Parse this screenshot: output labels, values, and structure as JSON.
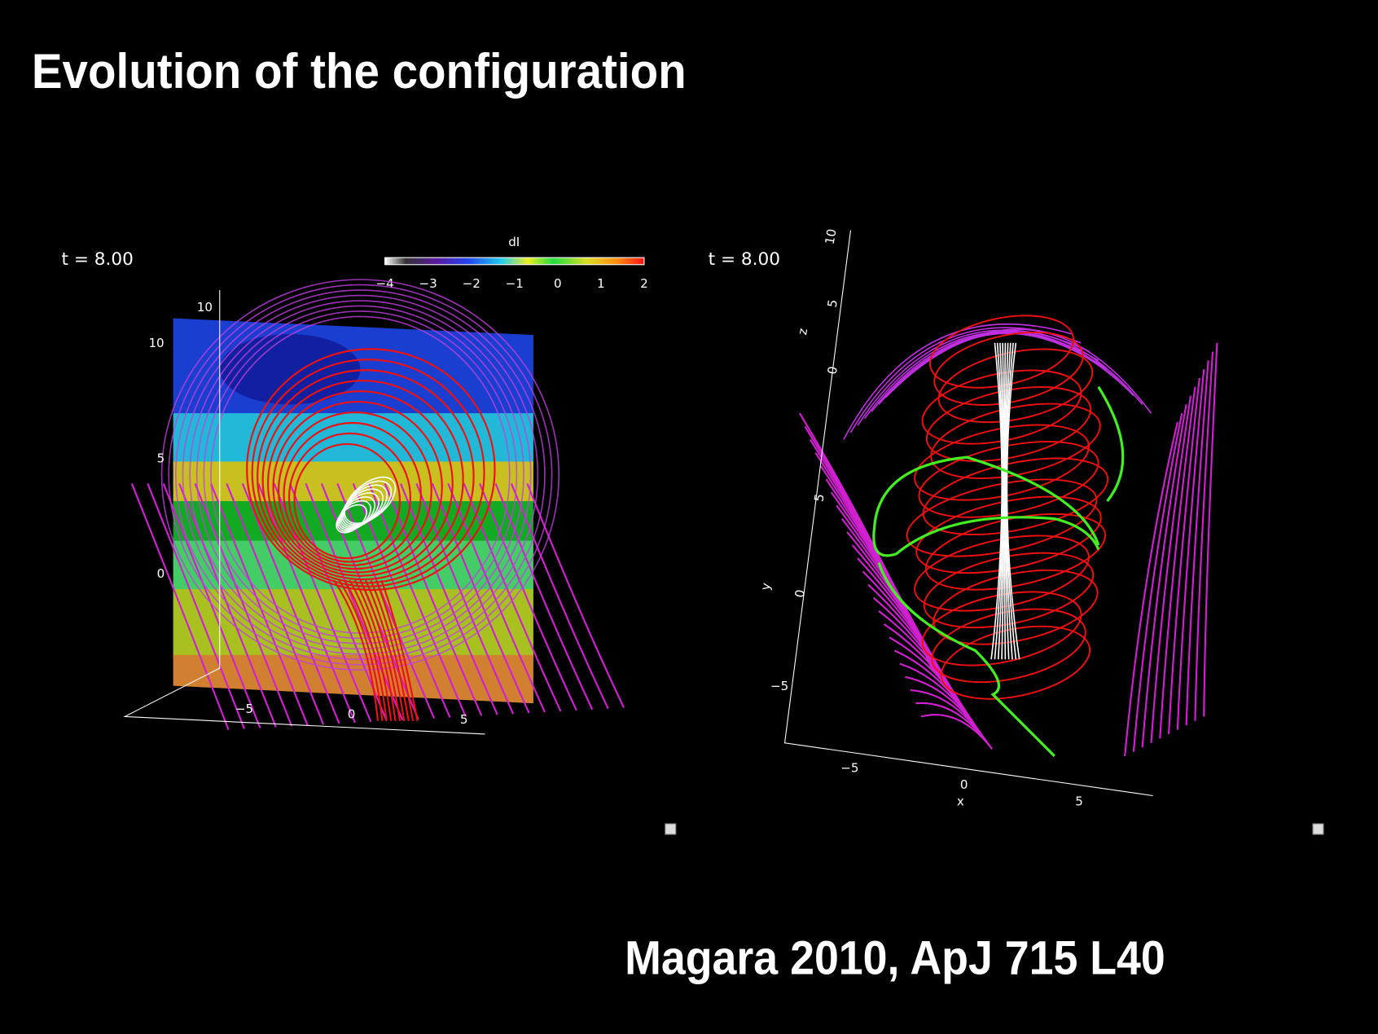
{
  "title": "Evolution of the configuration",
  "citation": "Magara 2010, ApJ 715 L40",
  "left_panel": {
    "time_label": "t = 8.00",
    "colorbar": {
      "label": "dI",
      "ticks": [
        "−4",
        "−3",
        "−2",
        "−1",
        "0",
        "1",
        "2"
      ]
    },
    "vertical_axis_ticks": [
      "10",
      "5",
      "0"
    ],
    "depth_axis_tick": "10",
    "bottom_axis_ticks": [
      "−5",
      "0",
      "5"
    ]
  },
  "right_panel": {
    "time_label": "t = 8.00",
    "z_axis_label": "z",
    "z_axis_ticks": [
      "10",
      "5",
      "0"
    ],
    "y_axis_label": "y",
    "y_axis_ticks": [
      "5",
      "0",
      "−5"
    ],
    "x_axis_label": "x",
    "x_axis_ticks": [
      "−5",
      "0",
      "5"
    ]
  }
}
